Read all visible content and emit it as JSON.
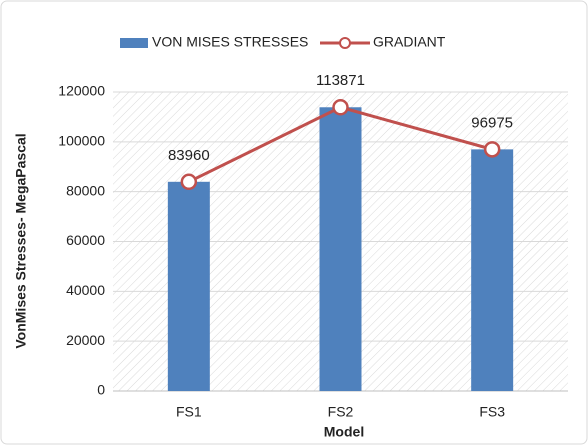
{
  "chart_data": {
    "type": "bar",
    "x_label": "Model",
    "y_label": "VonMises Stresses- MegaPascal",
    "categories": [
      "FS1",
      "FS2",
      "FS3"
    ],
    "series": [
      {
        "name": "VON MISES STRESSES",
        "type": "bar",
        "color": "#4f81bd",
        "values": [
          83960,
          113871,
          96975
        ]
      },
      {
        "name": "GRADIANT",
        "type": "line",
        "color": "#c0504d",
        "values": [
          83960,
          113871,
          96975
        ]
      }
    ],
    "ylim": [
      0,
      120000
    ],
    "yticks": [
      0,
      20000,
      40000,
      60000,
      80000,
      100000,
      120000
    ],
    "grid": true
  }
}
